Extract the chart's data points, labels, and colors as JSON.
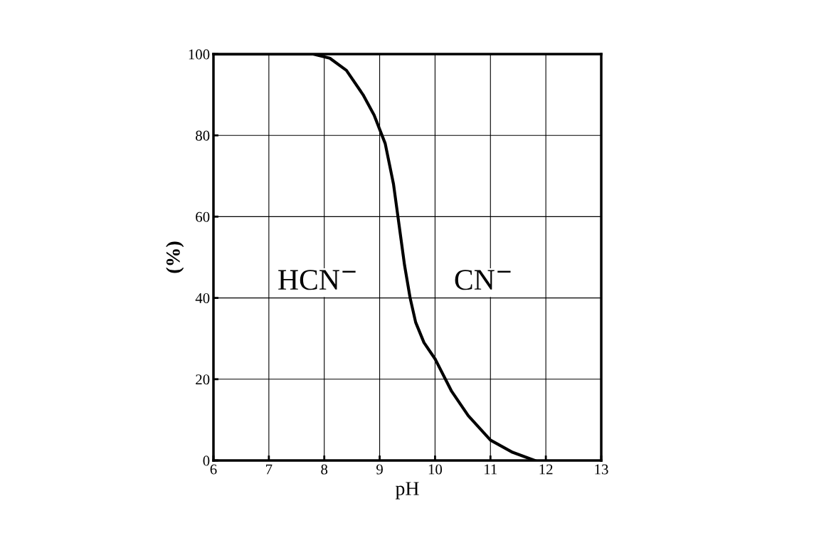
{
  "chart_data": {
    "type": "line",
    "xlabel": "pH",
    "ylabel": "(%)",
    "series": [
      {
        "color": "#000000",
        "x": [
          6,
          7,
          7.8,
          8.1,
          8.4,
          8.7,
          8.9,
          9.1,
          9.25,
          9.35,
          9.45,
          9.55,
          9.65,
          9.8,
          10,
          10.3,
          10.6,
          11,
          11.4,
          11.8
        ],
        "values": [
          100,
          100,
          100,
          99,
          96,
          90,
          85,
          78,
          68,
          58,
          48,
          40,
          34,
          29,
          25,
          17,
          11,
          5,
          2,
          0
        ]
      }
    ],
    "xlim": [
      6,
      13
    ],
    "xticks": [
      6,
      7,
      8,
      9,
      10,
      11,
      12,
      13
    ],
    "ylim": [
      0,
      100
    ],
    "yticks": [
      0,
      20,
      40,
      60,
      80,
      100
    ],
    "grid": true,
    "annotations": [
      "HCN$^{−}$",
      "CN$^{−}$"
    ]
  }
}
